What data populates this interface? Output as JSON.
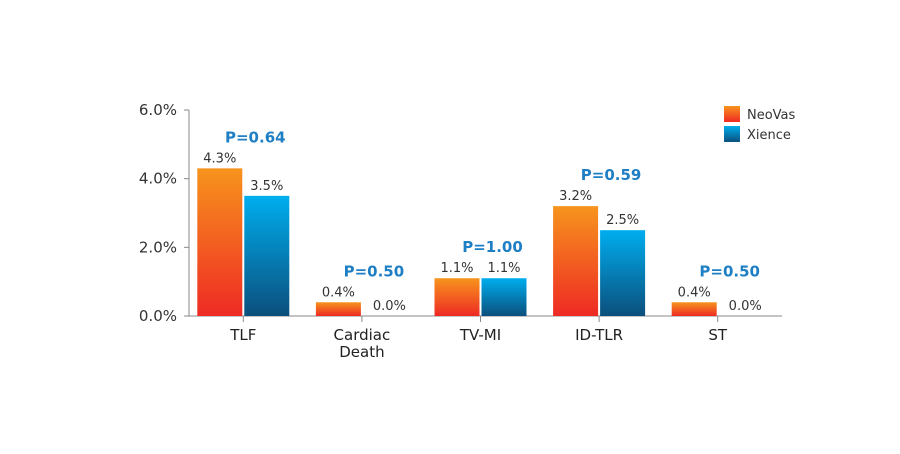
{
  "chart_data": {
    "type": "bar",
    "title": "",
    "xlabel": "",
    "ylabel": "",
    "ylim": [
      0,
      6
    ],
    "yticks": [
      "0.0%",
      "2.0%",
      "4.0%",
      "6.0%"
    ],
    "categories": [
      [
        "TLF"
      ],
      [
        "Cardiac",
        "Death"
      ],
      [
        "TV-MI"
      ],
      [
        "ID-TLR"
      ],
      [
        "ST"
      ]
    ],
    "series": [
      {
        "name": "NeoVas",
        "values": [
          4.3,
          0.4,
          1.1,
          3.2,
          0.4
        ],
        "labels": [
          "4.3%",
          "0.4%",
          "1.1%",
          "3.2%",
          "0.4%"
        ],
        "colors": [
          "#f7941d",
          "#ee2a24"
        ]
      },
      {
        "name": "Xience",
        "values": [
          3.5,
          0.0,
          1.1,
          2.5,
          0.0
        ],
        "labels": [
          "3.5%",
          "0.0%",
          "1.1%",
          "2.5%",
          "0.0%"
        ],
        "colors": [
          "#00aeef",
          "#0b4f7c"
        ]
      }
    ],
    "p_values": [
      "P=0.64",
      "P=0.50",
      "P=1.00",
      "P=0.59",
      "P=0.50"
    ],
    "grid": false,
    "legend_position": "top-right"
  }
}
